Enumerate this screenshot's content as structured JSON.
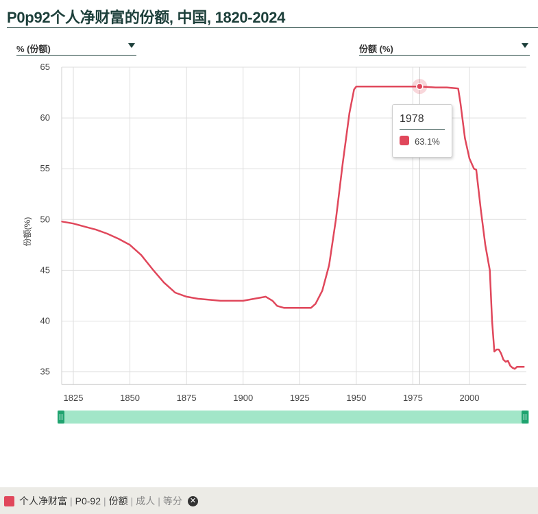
{
  "title": "P0p92个人净财富的份额, 中国, 1820-2024",
  "controls": {
    "left_dropdown": "% (份额)",
    "right_dropdown": "份额 (%)"
  },
  "tooltip": {
    "year": "1978",
    "value": "63.1%",
    "color": "#e0475b"
  },
  "legend": {
    "parts": [
      "个人净财富",
      "P0-92",
      "份额"
    ],
    "muted_parts": [
      "成人",
      "等分"
    ],
    "close_icon": "close-icon"
  },
  "chart_data": {
    "type": "line",
    "title": "P0p92个人净财富的份额, 中国, 1820-2024",
    "xlabel": "",
    "ylabel": "份额(%)",
    "xlim": [
      1820,
      2024
    ],
    "ylim": [
      34,
      65
    ],
    "x_ticks": [
      1825,
      1850,
      1875,
      1900,
      1925,
      1950,
      1975,
      2000
    ],
    "y_ticks": [
      35,
      40,
      45,
      50,
      55,
      60,
      65
    ],
    "grid": true,
    "legend_position": "bottom",
    "series": [
      {
        "color": "#e0475b",
        "points": [
          [
            1820,
            49.8
          ],
          [
            1825,
            49.6
          ],
          [
            1830,
            49.3
          ],
          [
            1835,
            49.0
          ],
          [
            1840,
            48.6
          ],
          [
            1845,
            48.1
          ],
          [
            1850,
            47.5
          ],
          [
            1855,
            46.5
          ],
          [
            1860,
            45.1
          ],
          [
            1865,
            43.8
          ],
          [
            1870,
            42.8
          ],
          [
            1875,
            42.4
          ],
          [
            1880,
            42.2
          ],
          [
            1885,
            42.1
          ],
          [
            1890,
            42.0
          ],
          [
            1895,
            42.0
          ],
          [
            1900,
            42.0
          ],
          [
            1905,
            42.2
          ],
          [
            1910,
            42.4
          ],
          [
            1913,
            42.0
          ],
          [
            1915,
            41.5
          ],
          [
            1918,
            41.3
          ],
          [
            1925,
            41.3
          ],
          [
            1930,
            41.3
          ],
          [
            1932,
            41.7
          ],
          [
            1935,
            43.0
          ],
          [
            1938,
            45.5
          ],
          [
            1941,
            50.0
          ],
          [
            1944,
            55.5
          ],
          [
            1947,
            60.5
          ],
          [
            1949,
            62.8
          ],
          [
            1950,
            63.1
          ],
          [
            1955,
            63.1
          ],
          [
            1960,
            63.1
          ],
          [
            1965,
            63.1
          ],
          [
            1970,
            63.1
          ],
          [
            1975,
            63.1
          ],
          [
            1978,
            63.1
          ],
          [
            1985,
            63.0
          ],
          [
            1990,
            63.0
          ],
          [
            1995,
            62.9
          ],
          [
            1996,
            61.5
          ],
          [
            1998,
            58.0
          ],
          [
            2000,
            56.0
          ],
          [
            2002,
            55.0
          ],
          [
            2003,
            54.9
          ],
          [
            2005,
            51.0
          ],
          [
            2007,
            47.5
          ],
          [
            2009,
            45.0
          ],
          [
            2010,
            40.0
          ],
          [
            2011,
            37.0
          ],
          [
            2012,
            37.2
          ],
          [
            2013,
            37.2
          ],
          [
            2014,
            36.8
          ],
          [
            2015,
            36.2
          ],
          [
            2016,
            36.0
          ],
          [
            2017,
            36.1
          ],
          [
            2018,
            35.6
          ],
          [
            2019,
            35.4
          ],
          [
            2020,
            35.3
          ],
          [
            2021,
            35.5
          ],
          [
            2022,
            35.5
          ],
          [
            2024,
            35.5
          ]
        ]
      }
    ],
    "highlight": {
      "x": 1978,
      "y": 63.1
    }
  }
}
